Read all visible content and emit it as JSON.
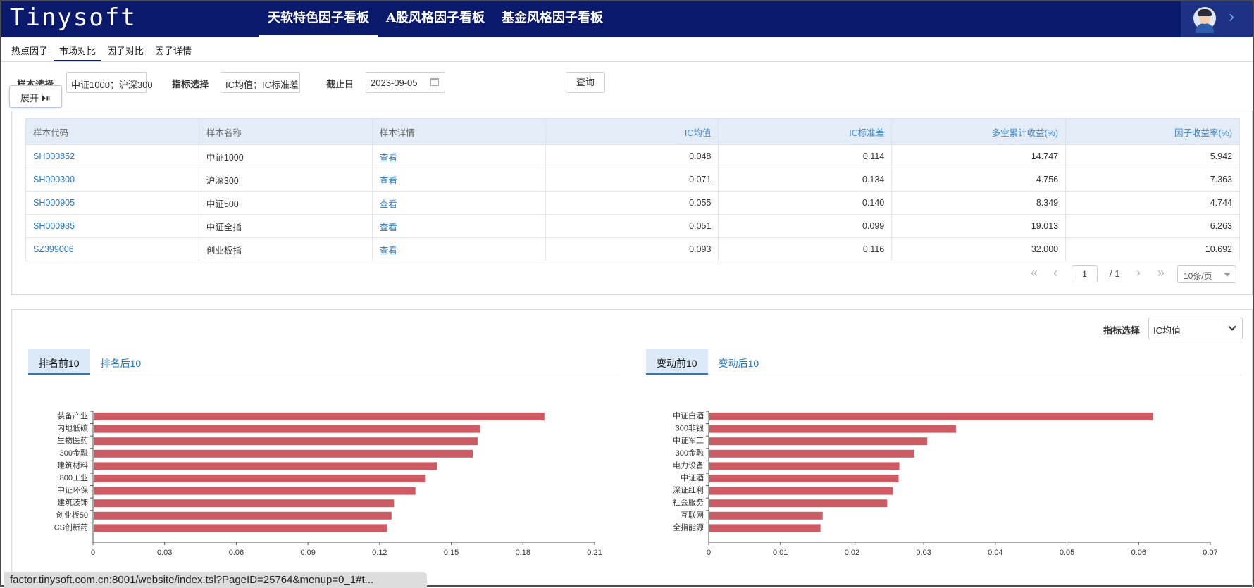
{
  "header": {
    "logo": "Tinysoft",
    "nav": [
      "天软特色因子看板",
      "A股风格因子看板",
      "基金风格因子看板"
    ],
    "active_nav": 0
  },
  "subtabs": [
    "热点因子",
    "市场对比",
    "因子对比",
    "因子详情"
  ],
  "active_subtab": 1,
  "filters": {
    "sample_label": "样本选择",
    "sample_value": "中证1000；沪深300",
    "indicator_label": "指标选择",
    "indicator_value": "IC均值；IC标准差",
    "date_label": "截止日",
    "date_value": "2023-09-05",
    "query_label": "查询",
    "expand_label": "展开 ⏵⏸"
  },
  "table": {
    "headers": [
      "样本代码",
      "样本名称",
      "样本详情",
      "IC均值",
      "IC标准差",
      "多空累计收益(%)",
      "因子收益率(%)"
    ],
    "rows": [
      [
        "SH000852",
        "中证1000",
        "查看",
        "0.048",
        "0.114",
        "14.747",
        "5.942"
      ],
      [
        "SH000300",
        "沪深300",
        "查看",
        "0.071",
        "0.134",
        "4.756",
        "7.363"
      ],
      [
        "SH000905",
        "中证500",
        "查看",
        "0.055",
        "0.140",
        "8.349",
        "4.744"
      ],
      [
        "SH000985",
        "中证全指",
        "查看",
        "0.051",
        "0.099",
        "19.013",
        "6.263"
      ],
      [
        "SZ399006",
        "创业板指",
        "查看",
        "0.093",
        "0.116",
        "32.000",
        "10.692"
      ]
    ]
  },
  "pager": {
    "first": "«",
    "prev": "‹",
    "next": "›",
    "last": "»",
    "current_page": "1",
    "total": "/ 1",
    "page_size": "10条/页"
  },
  "bottom": {
    "indicator_label": "指标选择",
    "indicator_value": "IC均值",
    "left_tabs": [
      "排名前10",
      "排名后10"
    ],
    "right_tabs": [
      "变动前10",
      "变动后10"
    ]
  },
  "chart_data": [
    {
      "type": "bar",
      "orientation": "horizontal",
      "categories": [
        "装备产业",
        "内地低碳",
        "生物医药",
        "300金融",
        "建筑材料",
        "800工业",
        "中证环保",
        "建筑装饰",
        "创业板50",
        "CS创新药"
      ],
      "values": [
        0.189,
        0.162,
        0.161,
        0.159,
        0.144,
        0.139,
        0.135,
        0.126,
        0.125,
        0.123
      ],
      "xlim": [
        0,
        0.21
      ],
      "xticks": [
        "0",
        "0.03",
        "0.06",
        "0.09",
        "0.12",
        "0.15",
        "0.18",
        "0.21"
      ],
      "color": "#cd5b63"
    },
    {
      "type": "bar",
      "orientation": "horizontal",
      "categories": [
        "中证白酒",
        "300非银",
        "中证军工",
        "300金融",
        "电力设备",
        "中证酒",
        "深证红利",
        "社会服务",
        "互联网",
        "全指能源"
      ],
      "values": [
        0.062,
        0.0345,
        0.0305,
        0.0287,
        0.0266,
        0.0265,
        0.0257,
        0.0249,
        0.0159,
        0.0156
      ],
      "xlim": [
        0,
        0.07
      ],
      "xticks": [
        "0",
        "0.01",
        "0.02",
        "0.03",
        "0.04",
        "0.05",
        "0.06",
        "0.07"
      ],
      "color": "#cd5b63"
    }
  ],
  "statusbar": "factor.tinysoft.com.cn:8001/website/index.tsl?PageID=25764&menup=0_1#t..."
}
